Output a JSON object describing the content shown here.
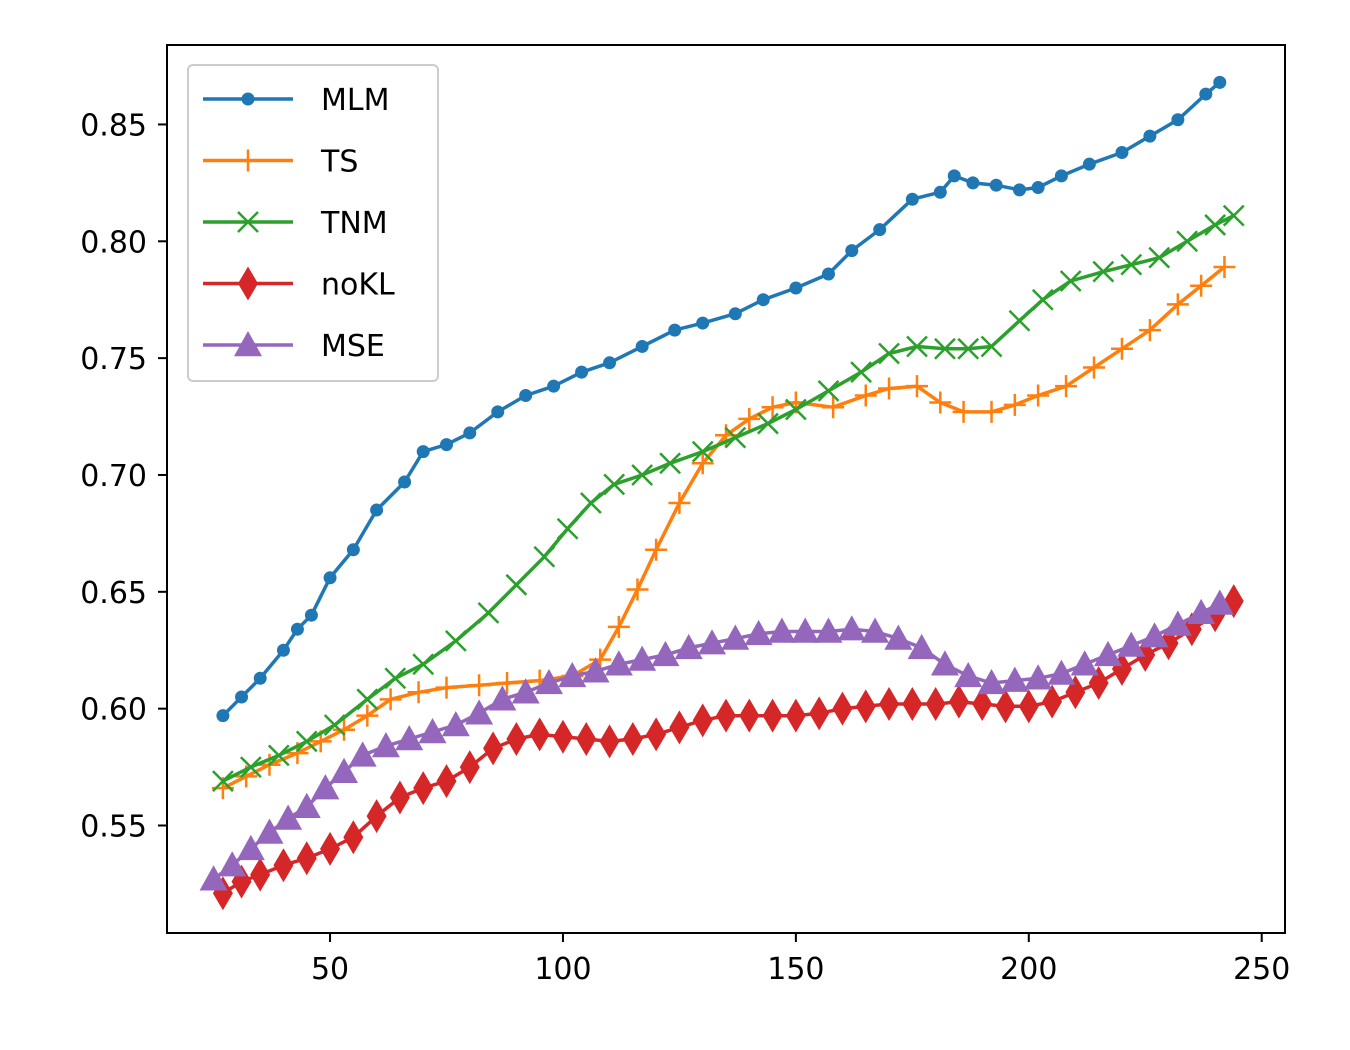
{
  "chart_data": {
    "type": "line",
    "title": "",
    "xlabel": "",
    "ylabel": "",
    "xlim": [
      15,
      255
    ],
    "ylim": [
      0.504,
      0.884
    ],
    "xticks": [
      50,
      100,
      150,
      200,
      250
    ],
    "yticks": [
      0.55,
      0.6,
      0.65,
      0.7,
      0.75,
      0.8,
      0.85
    ],
    "xtick_labels": [
      "50",
      "100",
      "150",
      "200",
      "250"
    ],
    "ytick_labels": [
      "0.55",
      "0.60",
      "0.65",
      "0.70",
      "0.75",
      "0.80",
      "0.85"
    ],
    "grid": false,
    "legend_position": "top-left",
    "series": [
      {
        "name": "MLM",
        "color": "#1f77b4",
        "marker": "dot",
        "x": [
          27,
          31,
          35,
          40,
          43,
          46,
          50,
          55,
          60,
          66,
          70,
          75,
          80,
          86,
          92,
          98,
          104,
          110,
          117,
          124,
          130,
          137,
          143,
          150,
          157,
          162,
          168,
          175,
          181,
          184,
          188,
          193,
          198,
          202,
          207,
          213,
          220,
          226,
          232,
          238,
          241
        ],
        "y": [
          0.597,
          0.605,
          0.613,
          0.625,
          0.634,
          0.64,
          0.656,
          0.668,
          0.685,
          0.697,
          0.71,
          0.713,
          0.718,
          0.727,
          0.734,
          0.738,
          0.744,
          0.748,
          0.755,
          0.762,
          0.765,
          0.769,
          0.775,
          0.78,
          0.786,
          0.796,
          0.805,
          0.818,
          0.821,
          0.828,
          0.825,
          0.824,
          0.822,
          0.823,
          0.828,
          0.833,
          0.838,
          0.845,
          0.852,
          0.863,
          0.868
        ]
      },
      {
        "name": "TS",
        "color": "#ff7f0e",
        "marker": "plus",
        "x": [
          27,
          32,
          37,
          43,
          48,
          53,
          58,
          63,
          69,
          75,
          82,
          88,
          95,
          102,
          108,
          112,
          116,
          120,
          125,
          130,
          135,
          140,
          145,
          150,
          158,
          165,
          170,
          176,
          181,
          186,
          192,
          197,
          202,
          208,
          214,
          220,
          226,
          232,
          237,
          242
        ],
        "y": [
          0.566,
          0.571,
          0.576,
          0.581,
          0.586,
          0.591,
          0.597,
          0.604,
          0.607,
          0.609,
          0.61,
          0.611,
          0.612,
          0.614,
          0.621,
          0.635,
          0.651,
          0.668,
          0.688,
          0.705,
          0.717,
          0.724,
          0.729,
          0.731,
          0.729,
          0.734,
          0.737,
          0.738,
          0.731,
          0.727,
          0.727,
          0.73,
          0.734,
          0.738,
          0.746,
          0.754,
          0.762,
          0.773,
          0.781,
          0.789
        ]
      },
      {
        "name": "TNM",
        "color": "#2ca02c",
        "marker": "x",
        "x": [
          27,
          33,
          39,
          45,
          51,
          58,
          64,
          70,
          77,
          84,
          90,
          96,
          101,
          106,
          111,
          117,
          123,
          130,
          137,
          144,
          150,
          157,
          164,
          170,
          176,
          182,
          187,
          192,
          198,
          203,
          209,
          216,
          222,
          228,
          234,
          240,
          244
        ],
        "y": [
          0.569,
          0.575,
          0.58,
          0.586,
          0.593,
          0.604,
          0.613,
          0.619,
          0.629,
          0.641,
          0.653,
          0.665,
          0.677,
          0.688,
          0.696,
          0.7,
          0.705,
          0.71,
          0.716,
          0.722,
          0.728,
          0.736,
          0.744,
          0.752,
          0.755,
          0.754,
          0.754,
          0.755,
          0.766,
          0.775,
          0.783,
          0.787,
          0.79,
          0.793,
          0.8,
          0.807,
          0.811
        ]
      },
      {
        "name": "noKL",
        "color": "#d62728",
        "marker": "diamond",
        "x": [
          27,
          31,
          35,
          40,
          45,
          50,
          55,
          60,
          65,
          70,
          75,
          80,
          85,
          90,
          95,
          100,
          105,
          110,
          115,
          120,
          125,
          130,
          135,
          140,
          145,
          150,
          155,
          160,
          165,
          170,
          175,
          180,
          185,
          190,
          195,
          200,
          205,
          210,
          215,
          220,
          225,
          230,
          235,
          240,
          244
        ],
        "y": [
          0.521,
          0.526,
          0.529,
          0.533,
          0.536,
          0.54,
          0.545,
          0.554,
          0.562,
          0.566,
          0.569,
          0.575,
          0.583,
          0.587,
          0.589,
          0.588,
          0.587,
          0.586,
          0.587,
          0.589,
          0.592,
          0.595,
          0.597,
          0.597,
          0.597,
          0.597,
          0.598,
          0.6,
          0.601,
          0.602,
          0.602,
          0.602,
          0.603,
          0.602,
          0.601,
          0.601,
          0.603,
          0.607,
          0.611,
          0.617,
          0.623,
          0.628,
          0.634,
          0.64,
          0.646
        ]
      },
      {
        "name": "MSE",
        "color": "#9467bd",
        "marker": "triangle",
        "x": [
          25,
          29,
          33,
          37,
          41,
          45,
          49,
          53,
          57,
          62,
          67,
          72,
          77,
          82,
          87,
          92,
          97,
          102,
          107,
          112,
          117,
          122,
          127,
          132,
          137,
          142,
          147,
          152,
          157,
          162,
          167,
          172,
          177,
          182,
          187,
          192,
          197,
          202,
          207,
          212,
          217,
          222,
          227,
          232,
          237,
          241
        ],
        "y": [
          0.527,
          0.533,
          0.54,
          0.547,
          0.553,
          0.558,
          0.566,
          0.573,
          0.58,
          0.584,
          0.587,
          0.59,
          0.593,
          0.598,
          0.604,
          0.607,
          0.611,
          0.614,
          0.616,
          0.619,
          0.621,
          0.623,
          0.626,
          0.628,
          0.63,
          0.632,
          0.633,
          0.633,
          0.633,
          0.634,
          0.633,
          0.63,
          0.626,
          0.619,
          0.614,
          0.611,
          0.612,
          0.613,
          0.615,
          0.619,
          0.623,
          0.627,
          0.631,
          0.636,
          0.641,
          0.645
        ]
      }
    ]
  }
}
